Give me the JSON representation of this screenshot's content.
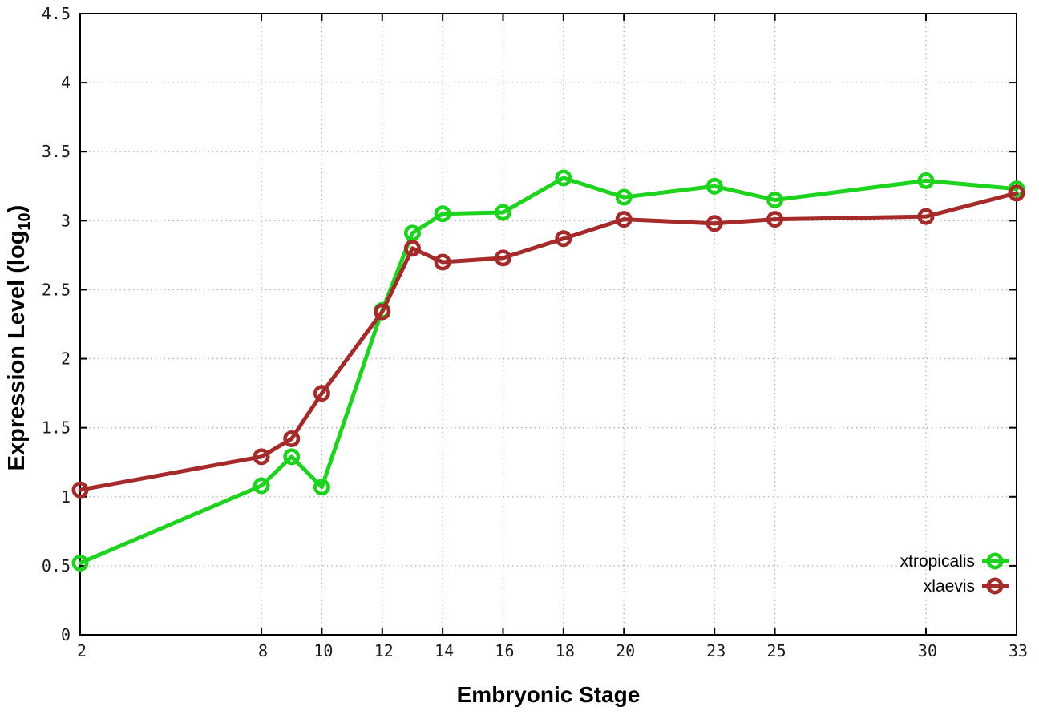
{
  "page": {
    "background": "#ffffff"
  },
  "chart_data": {
    "type": "line",
    "title": "",
    "xlabel": "Embryonic Stage",
    "ylabel": {
      "prefix": "Expression Level (log",
      "subscript": "10",
      "suffix": ")"
    },
    "xlim": [
      2,
      33
    ],
    "ylim": [
      0,
      4.5
    ],
    "x_ticks": [
      2,
      8,
      10,
      12,
      14,
      16,
      18,
      20,
      23,
      25,
      30,
      33
    ],
    "y_ticks": [
      0,
      0.5,
      1,
      1.5,
      2,
      2.5,
      3,
      3.5,
      4,
      4.5
    ],
    "grid": "dotted",
    "legend_position": "inside-bottom-right",
    "x": [
      2,
      8,
      9,
      10,
      12,
      13,
      14,
      16,
      18,
      20,
      23,
      25,
      30,
      33
    ],
    "series": [
      {
        "name": "xtropicalis",
        "color": "#1ed31e",
        "marker": "open-circle",
        "values": [
          0.52,
          1.08,
          1.29,
          1.07,
          2.35,
          2.91,
          3.05,
          3.06,
          3.31,
          3.17,
          3.25,
          3.15,
          3.29,
          3.23
        ]
      },
      {
        "name": "xlaevis",
        "color": "#a52a2a",
        "marker": "open-circle",
        "values": [
          1.05,
          1.29,
          1.42,
          1.75,
          2.34,
          2.8,
          2.7,
          2.73,
          2.87,
          3.01,
          2.98,
          3.01,
          3.03,
          3.2
        ]
      }
    ]
  },
  "style": {
    "axis_color": "#000000",
    "tick_label_color": "#1a1a1a",
    "grid_color": "#a8a8a8",
    "title_color": "#000000",
    "legend_text_color": "#000000"
  }
}
